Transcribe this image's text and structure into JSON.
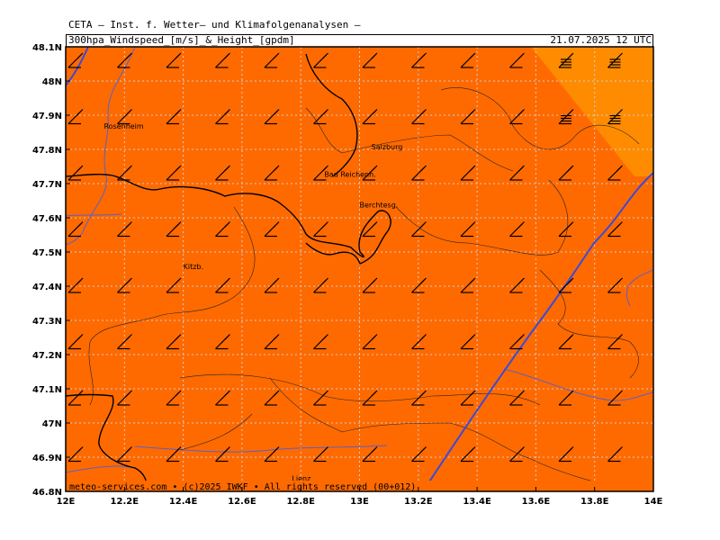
{
  "header": {
    "org_line": "CETA — Inst. f. Wetter— und Klimafolgenanalysen —",
    "field_line": "300hpa_Windspeed_[m/s]_&_Height_[gpdm]",
    "valid_time": "21.07.2025 12 UTC"
  },
  "map": {
    "lon_range": [
      12.0,
      14.0
    ],
    "lat_range": [
      46.8,
      48.1
    ],
    "lon_ticks": [
      "12E",
      "12.2E",
      "12.4E",
      "12.6E",
      "12.8E",
      "13E",
      "13.2E",
      "13.4E",
      "13.6E",
      "13.8E",
      "14E"
    ],
    "lat_ticks": [
      "48.1N",
      "48N",
      "47.9N",
      "47.8N",
      "47.7N",
      "47.6N",
      "47.5N",
      "47.4N",
      "47.3N",
      "47.2N",
      "47.1N",
      "47N",
      "46.9N",
      "46.8N"
    ],
    "colors": {
      "wind_band_low": "#ff6a00",
      "wind_band_high": "#ff8c00",
      "wind_band_top": "#ffaa33",
      "height_contour": "#3a4bd8",
      "border": "#000000",
      "river": "#5560c0",
      "gridline": "#c8c8c8"
    },
    "cities": [
      {
        "name": "Rosenheim",
        "lon": 12.13,
        "lat": 47.86
      },
      {
        "name": "Salzburg",
        "lon": 13.04,
        "lat": 47.8
      },
      {
        "name": "Bad Reichenh.",
        "lon": 12.88,
        "lat": 47.72
      },
      {
        "name": "Berchtesg.",
        "lon": 13.0,
        "lat": 47.63
      },
      {
        "name": "Kitzb.",
        "lon": 12.4,
        "lat": 47.45
      },
      {
        "name": "Lienz",
        "lon": 12.77,
        "lat": 46.83
      }
    ]
  },
  "footer": {
    "credit": "meteo-services.com • (c)2025 IWKF • All rights reserved (00+012)"
  }
}
